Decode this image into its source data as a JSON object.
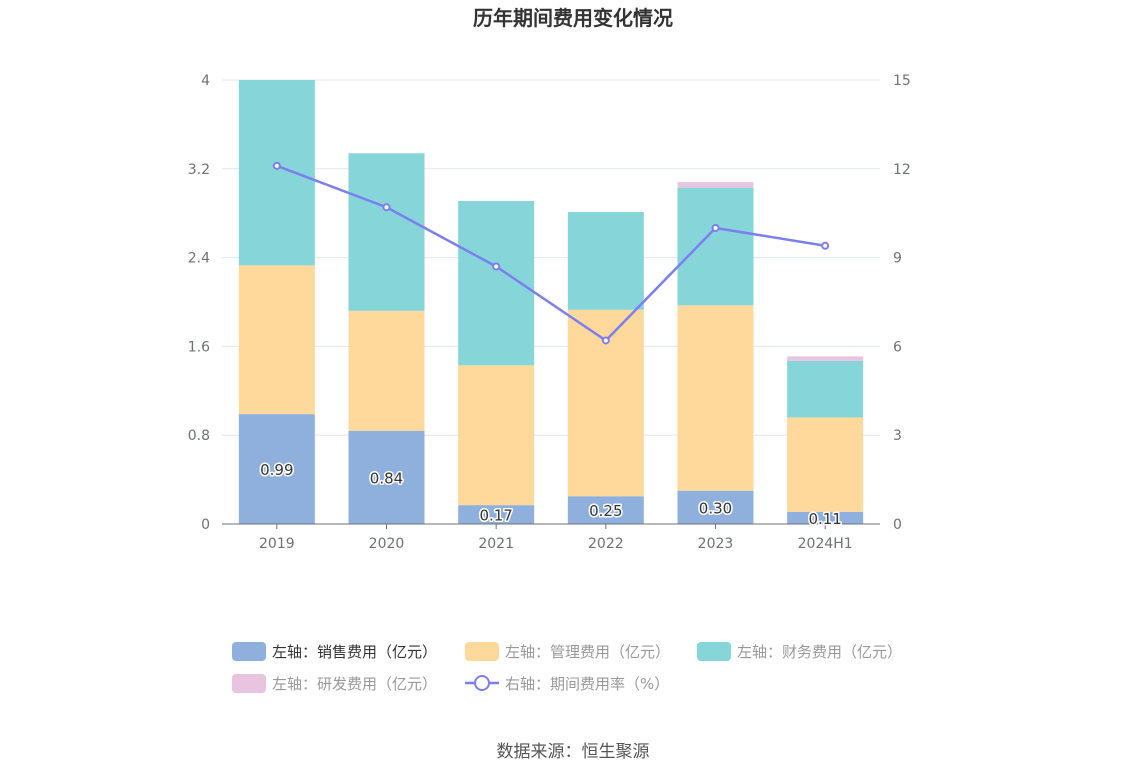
{
  "chart_data": {
    "type": "bar",
    "title": "历年期间费用变化情况",
    "categories": [
      "2019",
      "2020",
      "2021",
      "2022",
      "2023",
      "2024H1"
    ],
    "left_axis": {
      "ylim": [
        0,
        4
      ],
      "ticks": [
        "0",
        "0.8",
        "1.6",
        "2.4",
        "3.2",
        "4"
      ]
    },
    "right_axis": {
      "ylim": [
        0,
        15
      ],
      "ticks": [
        "0",
        "3",
        "6",
        "9",
        "12",
        "15"
      ]
    },
    "series": [
      {
        "name": "左轴：销售费用（亿元）",
        "type": "bar",
        "axis": "left",
        "color": "#8fb0dc",
        "values": [
          0.99,
          0.84,
          0.17,
          0.25,
          0.3,
          0.11
        ],
        "labels": [
          "0.99",
          "0.84",
          "0.17",
          "0.25",
          "0.30",
          "0.11"
        ]
      },
      {
        "name": "左轴：管理费用（亿元）",
        "type": "bar",
        "axis": "left",
        "color": "#fed99b",
        "values": [
          1.34,
          1.08,
          1.26,
          1.68,
          1.67,
          0.85
        ]
      },
      {
        "name": "左轴：财务费用（亿元）",
        "type": "bar",
        "axis": "left",
        "color": "#86d5d9",
        "values": [
          1.67,
          1.42,
          1.48,
          0.88,
          1.06,
          0.51
        ]
      },
      {
        "name": "左轴：研发费用（亿元）",
        "type": "bar",
        "axis": "left",
        "color": "#e8c4e0",
        "values": [
          0,
          0,
          0,
          0,
          0.05,
          0.04
        ]
      },
      {
        "name": "右轴：期间费用率（%）",
        "type": "line",
        "axis": "right",
        "color": "#7b7ff0",
        "values": [
          12.1,
          10.7,
          8.7,
          6.2,
          10.0,
          9.4
        ]
      }
    ],
    "legend_text_colors": [
      "#333333",
      "#999999",
      "#999999",
      "#999999",
      "#999999"
    ],
    "grid": true,
    "legend_position": "bottom"
  },
  "source": "数据来源：恒生聚源"
}
